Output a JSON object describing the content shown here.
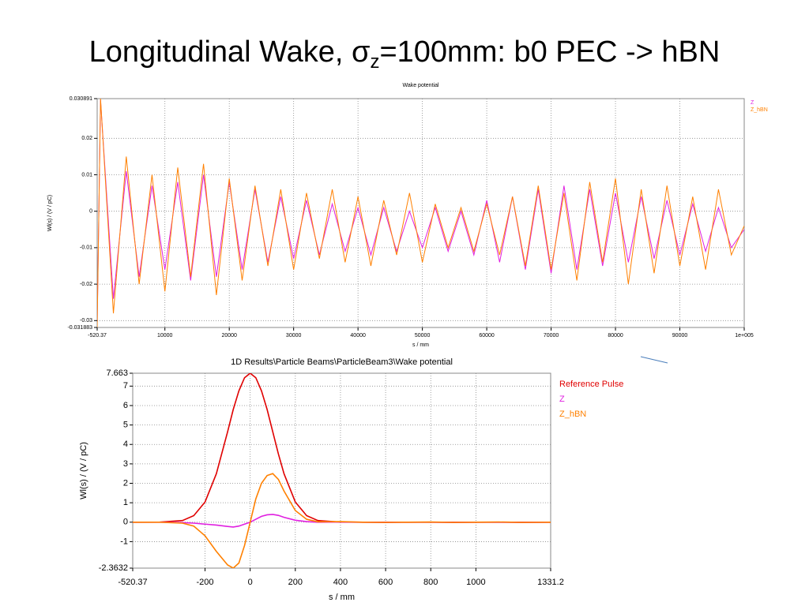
{
  "slide": {
    "title": [
      "Longitudinal Wake, σ",
      "z",
      "=100mm: b0 PEC -> hBN"
    ]
  },
  "chart_data": [
    {
      "type": "line",
      "title": "Wake potential",
      "x_label": "s / mm",
      "y_label": "Wl(s) / (V / pC)",
      "xlim": [
        -520.37,
        100000
      ],
      "xticks": [
        -520.37,
        10000,
        20000,
        30000,
        40000,
        50000,
        60000,
        70000,
        80000,
        90000,
        {
          "value": 100000,
          "label": "1e+005"
        }
      ],
      "ylim": [
        -0.031883,
        0.030891
      ],
      "yticks": [
        -0.031883,
        -0.03,
        -0.02,
        -0.01,
        0,
        0.01,
        0.02,
        0.030891
      ],
      "grid": true,
      "legend": "upper right",
      "x": [
        -520.37,
        0,
        2000,
        4000,
        6000,
        8000,
        10000,
        12000,
        14000,
        16000,
        18000,
        20000,
        22000,
        24000,
        26000,
        28000,
        30000,
        32000,
        34000,
        36000,
        38000,
        40000,
        42000,
        44000,
        46000,
        48000,
        50000,
        52000,
        54000,
        56000,
        58000,
        60000,
        62000,
        64000,
        66000,
        68000,
        70000,
        72000,
        74000,
        76000,
        78000,
        80000,
        82000,
        84000,
        86000,
        88000,
        90000,
        92000,
        94000,
        96000,
        98000,
        100000
      ],
      "series": [
        {
          "name": "Z",
          "color": "#e020e0",
          "values": [
            -0.031,
            0.0305,
            -0.024,
            0.011,
            -0.018,
            0.007,
            -0.016,
            0.008,
            -0.019,
            0.01,
            -0.018,
            0.008,
            -0.016,
            0.006,
            -0.014,
            0.004,
            -0.013,
            0.003,
            -0.012,
            0.002,
            -0.011,
            0.001,
            -0.012,
            0.001,
            -0.011,
            0.0,
            -0.01,
            0.001,
            -0.011,
            0.0,
            -0.012,
            0.003,
            -0.014,
            0.004,
            -0.016,
            0.006,
            -0.017,
            0.007,
            -0.016,
            0.006,
            -0.015,
            0.005,
            -0.014,
            0.004,
            -0.013,
            0.003,
            -0.012,
            0.002,
            -0.011,
            0.001,
            -0.01,
            -0.005
          ]
        },
        {
          "name": "Z_hBN",
          "color": "#ff8000",
          "values": [
            -0.0318,
            0.0309,
            -0.028,
            0.015,
            -0.02,
            0.01,
            -0.022,
            0.012,
            -0.018,
            0.013,
            -0.023,
            0.009,
            -0.019,
            0.007,
            -0.015,
            0.006,
            -0.016,
            0.005,
            -0.013,
            0.006,
            -0.014,
            0.004,
            -0.015,
            0.003,
            -0.012,
            0.005,
            -0.014,
            0.002,
            -0.01,
            0.001,
            -0.011,
            0.002,
            -0.012,
            0.004,
            -0.015,
            0.007,
            -0.016,
            0.005,
            -0.019,
            0.008,
            -0.014,
            0.009,
            -0.02,
            0.006,
            -0.017,
            0.007,
            -0.015,
            0.004,
            -0.016,
            0.006,
            -0.012,
            -0.004
          ]
        }
      ]
    },
    {
      "type": "line",
      "title": "1D Results\\Particle Beams\\ParticleBeam3\\Wake potential",
      "x_label": "s / mm",
      "y_label": "Wl(s) / (V / pC)",
      "xlim": [
        -520.37,
        1331.2
      ],
      "xticks": [
        -520.37,
        -200,
        0,
        200,
        400,
        600,
        800,
        1000,
        1331.2
      ],
      "ylim": [
        -2.3632,
        7.663
      ],
      "yticks": [
        -2.3632,
        -1,
        0,
        1,
        2,
        3,
        4,
        5,
        6,
        7,
        7.663
      ],
      "grid": true,
      "legend": "upper right",
      "x": [
        -520.37,
        -400,
        -300,
        -250,
        -200,
        -150,
        -100,
        -75,
        -50,
        -25,
        0,
        25,
        50,
        75,
        100,
        125,
        150,
        200,
        250,
        300,
        400,
        500,
        600,
        700,
        800,
        900,
        1000,
        1100,
        1200,
        1331.2
      ],
      "series": [
        {
          "name": "Reference Pulse",
          "color": "#e00000",
          "values": [
            0,
            0.003,
            0.085,
            0.336,
            1.037,
            2.49,
            4.65,
            5.8,
            6.76,
            7.43,
            7.663,
            7.43,
            6.76,
            5.8,
            4.65,
            3.51,
            2.49,
            1.037,
            0.336,
            0.085,
            0.003,
            0,
            0,
            0,
            0,
            0,
            0,
            0,
            0,
            0
          ]
        },
        {
          "name": "Z",
          "color": "#e020e0",
          "values": [
            0,
            0,
            -0.02,
            -0.05,
            -0.1,
            -0.15,
            -0.22,
            -0.25,
            -0.2,
            -0.1,
            0,
            0.15,
            0.3,
            0.38,
            0.4,
            0.35,
            0.25,
            0.1,
            0.03,
            0,
            0.01,
            0,
            -0.01,
            0,
            0,
            -0.01,
            0,
            0,
            -0.01,
            0
          ]
        },
        {
          "name": "Z_hBN",
          "color": "#ff8000",
          "values": [
            0,
            0,
            -0.05,
            -0.2,
            -0.7,
            -1.5,
            -2.2,
            -2.36,
            -2.1,
            -1.2,
            0,
            1.2,
            2.0,
            2.4,
            2.5,
            2.2,
            1.6,
            0.6,
            0.15,
            0.02,
            0.03,
            0,
            -0.01,
            0,
            0.01,
            -0.01,
            0,
            0.01,
            -0.01,
            0
          ]
        }
      ]
    }
  ]
}
